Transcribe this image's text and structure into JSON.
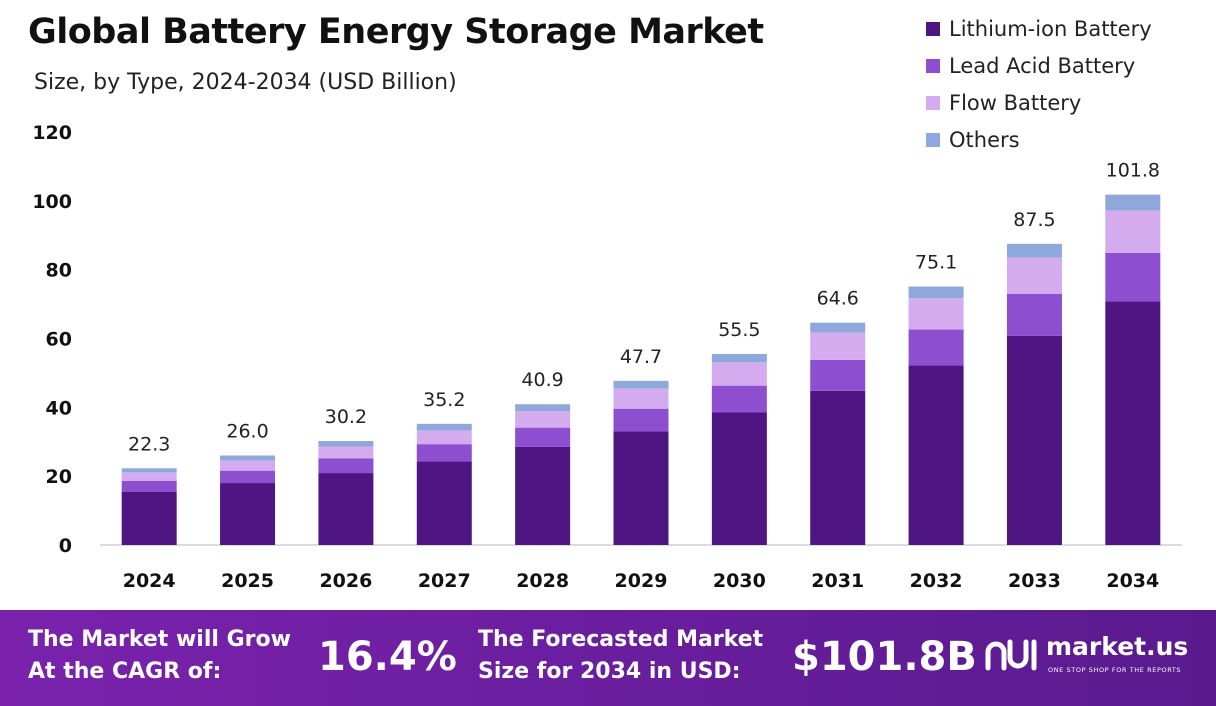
{
  "chart_data": {
    "type": "bar",
    "stacked": true,
    "title": "Global Battery Energy Storage Market",
    "subtitle": "Size, by Type, 2024-2034 (USD Billion)",
    "categories": [
      "2024",
      "2025",
      "2026",
      "2027",
      "2028",
      "2029",
      "2030",
      "2031",
      "2032",
      "2033",
      "2034"
    ],
    "series": [
      {
        "name": "Lithium-ion Battery",
        "color": "#4e1583",
        "values": [
          15.4,
          18.0,
          20.9,
          24.3,
          28.5,
          33.0,
          38.5,
          44.8,
          52.2,
          60.8,
          70.8
        ]
      },
      {
        "name": "Lead Acid Battery",
        "color": "#8d4fd0",
        "values": [
          3.2,
          3.6,
          4.3,
          5.0,
          5.6,
          6.6,
          7.8,
          9.0,
          10.4,
          12.2,
          14.1
        ]
      },
      {
        "name": "Flow Battery",
        "color": "#d5abf0",
        "values": [
          2.5,
          2.9,
          3.4,
          4.0,
          4.8,
          5.9,
          6.8,
          7.9,
          9.1,
          10.5,
          12.3
        ]
      },
      {
        "name": "Others",
        "color": "#8fa8dc",
        "values": [
          1.2,
          1.5,
          1.6,
          1.9,
          2.0,
          2.2,
          2.4,
          2.9,
          3.4,
          4.0,
          4.6
        ]
      }
    ],
    "totals": [
      "22.3",
      "26.0",
      "30.2",
      "35.2",
      "40.9",
      "47.7",
      "55.5",
      "64.6",
      "75.1",
      "87.5",
      "101.8"
    ],
    "yticks": [
      "0",
      "20",
      "40",
      "60",
      "80",
      "100",
      "120"
    ],
    "ylim": [
      0,
      120
    ],
    "xlabel": "",
    "ylabel": "",
    "grid": false,
    "legend_position": "top-right"
  },
  "footer": {
    "cagr_label": "The Market will Grow\nAt the CAGR of:",
    "cagr_value": "16.4%",
    "forecast_label": "The Forecasted Market\nSize for 2034 in USD:",
    "forecast_value": "$101.8B",
    "brand_name": "market.us",
    "brand_tagline": "ONE STOP SHOP FOR THE REPORTS",
    "background_color": "#6a1e9e"
  }
}
